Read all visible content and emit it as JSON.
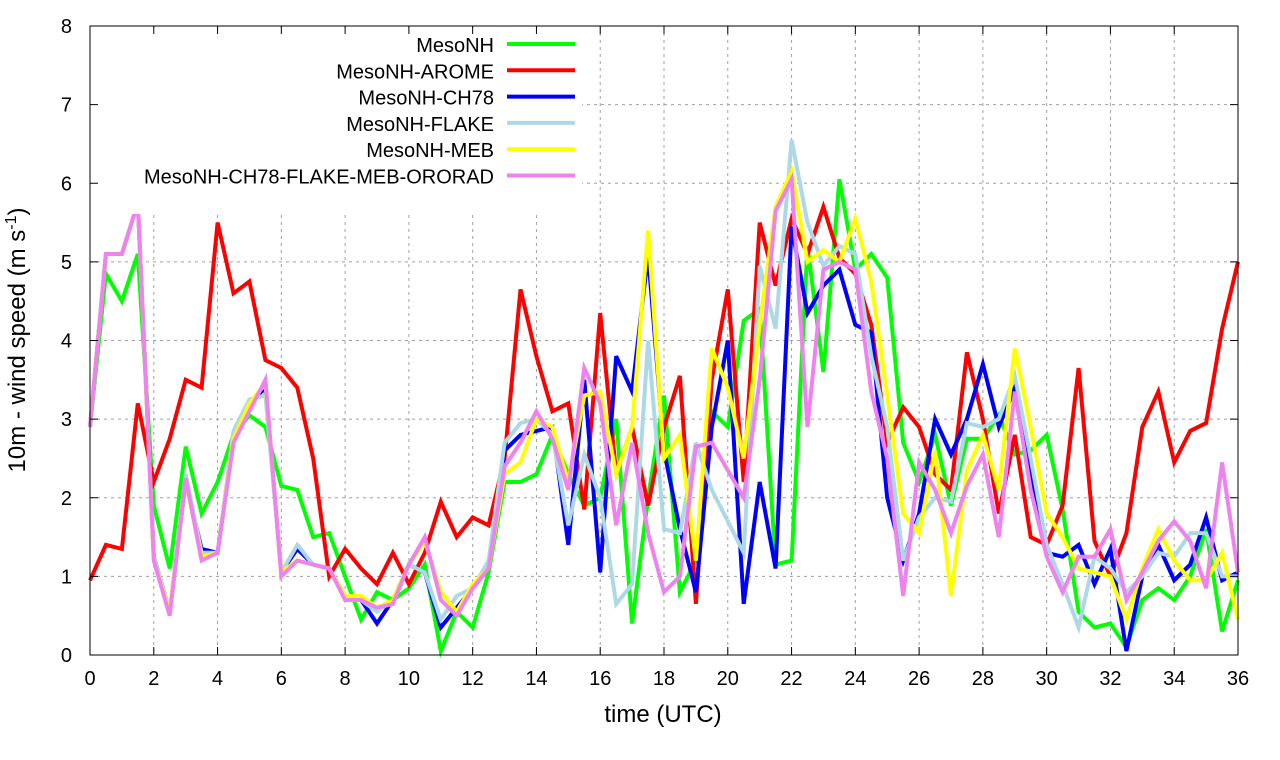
{
  "chart_data": {
    "type": "line",
    "title": "",
    "xlabel": "time (UTC)",
    "ylabel": "10m - wind speed  (m s",
    "ylabel_sup": "-1",
    "ylabel_end": ")",
    "xlim": [
      0,
      36
    ],
    "ylim": [
      0,
      8
    ],
    "xticks": [
      0,
      2,
      4,
      6,
      8,
      10,
      12,
      14,
      16,
      18,
      20,
      22,
      24,
      26,
      28,
      30,
      32,
      34,
      36
    ],
    "yticks": [
      0,
      1,
      2,
      3,
      4,
      5,
      6,
      7,
      8
    ],
    "grid": true,
    "legend_position": "top-left",
    "x_step": 0.5,
    "series": [
      {
        "name": "MesoNH",
        "color": "#00ff00",
        "values": [
          2.9,
          4.85,
          4.5,
          5.1,
          1.9,
          1.1,
          2.65,
          1.8,
          2.2,
          2.8,
          3.05,
          2.9,
          2.15,
          2.1,
          1.5,
          1.55,
          1.0,
          0.45,
          0.8,
          0.7,
          0.85,
          1.15,
          0.05,
          0.55,
          0.35,
          1.05,
          2.2,
          2.2,
          2.3,
          2.8,
          2.3,
          1.9,
          2.0,
          3.0,
          0.4,
          2.0,
          3.3,
          0.8,
          1.2,
          3.1,
          2.9,
          4.25,
          4.4,
          1.15,
          1.2,
          5.2,
          3.6,
          6.05,
          4.9,
          5.1,
          4.8,
          2.7,
          2.2,
          2.8,
          1.9,
          2.75,
          2.75,
          3.05,
          2.55,
          2.6,
          2.8,
          1.85,
          0.55,
          0.35,
          0.4,
          0.1,
          0.7,
          0.85,
          0.7,
          1.0,
          1.6,
          0.3,
          0.95
        ]
      },
      {
        "name": "MesoNH-AROME",
        "color": "#ff0000",
        "values": [
          0.95,
          1.4,
          1.35,
          3.2,
          2.2,
          2.75,
          3.5,
          3.4,
          5.5,
          4.6,
          4.75,
          3.75,
          3.65,
          3.4,
          2.5,
          1.0,
          1.35,
          1.1,
          0.9,
          1.3,
          0.9,
          1.3,
          1.95,
          1.5,
          1.75,
          1.65,
          2.5,
          4.65,
          3.8,
          3.1,
          3.2,
          1.85,
          4.35,
          2.3,
          2.9,
          1.9,
          2.9,
          3.55,
          0.65,
          3.5,
          4.65,
          2.2,
          5.5,
          4.7,
          5.55,
          5.1,
          5.7,
          5.05,
          4.85,
          4.2,
          2.7,
          3.15,
          2.9,
          2.3,
          2.1,
          3.85,
          3.0,
          1.8,
          2.8,
          1.5,
          1.4,
          1.9,
          3.65,
          1.45,
          1.0,
          1.55,
          2.9,
          3.35,
          2.45,
          2.85,
          2.95,
          4.15,
          5.0
        ]
      },
      {
        "name": "MesoNH-CH78",
        "color": "#0000ff",
        "values": [
          2.9,
          5.1,
          5.1,
          5.75,
          1.25,
          0.55,
          2.2,
          1.35,
          1.3,
          2.8,
          3.2,
          3.4,
          1.05,
          1.35,
          1.15,
          1.1,
          0.75,
          0.7,
          0.4,
          0.7,
          1.15,
          1.05,
          0.35,
          0.6,
          0.85,
          1.1,
          2.6,
          2.8,
          2.85,
          2.9,
          1.4,
          3.5,
          1.05,
          3.8,
          3.35,
          5.1,
          2.6,
          1.6,
          0.8,
          2.9,
          4.0,
          0.65,
          2.2,
          1.1,
          5.45,
          4.35,
          4.7,
          4.9,
          4.2,
          4.1,
          2.0,
          1.2,
          1.8,
          3.0,
          2.55,
          3.0,
          3.7,
          2.9,
          3.4,
          2.3,
          1.3,
          1.25,
          1.4,
          0.9,
          1.35,
          0.05,
          1.0,
          1.4,
          0.95,
          1.15,
          1.75,
          0.95,
          1.05
        ]
      },
      {
        "name": "MesoNH-FLAKE",
        "color": "#add8e6",
        "values": [
          2.9,
          5.1,
          5.1,
          5.75,
          1.25,
          0.55,
          2.3,
          1.3,
          1.3,
          2.85,
          3.25,
          3.3,
          1.05,
          1.4,
          1.15,
          1.1,
          0.75,
          0.7,
          0.55,
          0.7,
          1.15,
          1.05,
          0.45,
          0.75,
          0.85,
          1.2,
          2.7,
          2.95,
          3.0,
          2.8,
          1.65,
          2.55,
          2.0,
          0.65,
          0.9,
          4.0,
          1.6,
          1.55,
          2.7,
          2.1,
          1.7,
          1.3,
          4.95,
          4.15,
          6.55,
          5.5,
          4.95,
          5.2,
          5.1,
          3.8,
          2.9,
          1.2,
          1.75,
          2.0,
          1.95,
          2.95,
          2.9,
          3.0,
          3.55,
          2.5,
          1.4,
          0.9,
          0.35,
          1.25,
          1.1,
          0.8,
          1.0,
          1.3,
          1.25,
          1.55,
          1.55,
          1.0,
          1.0
        ]
      },
      {
        "name": "MesoNH-MEB",
        "color": "#ffff00",
        "values": [
          2.9,
          5.1,
          5.1,
          5.75,
          1.2,
          0.55,
          2.2,
          1.25,
          1.3,
          2.75,
          3.2,
          3.45,
          1.05,
          1.2,
          1.15,
          1.1,
          0.75,
          0.75,
          0.6,
          0.7,
          1.15,
          1.45,
          0.8,
          0.55,
          0.9,
          1.1,
          2.3,
          2.45,
          3.0,
          2.9,
          2.2,
          3.3,
          3.35,
          2.3,
          2.9,
          5.4,
          2.5,
          2.8,
          1.2,
          3.9,
          3.4,
          2.5,
          4.2,
          5.7,
          6.15,
          5.0,
          5.15,
          5.0,
          5.55,
          4.75,
          3.3,
          1.8,
          1.55,
          2.6,
          0.75,
          2.35,
          2.8,
          2.1,
          3.9,
          2.9,
          1.8,
          1.5,
          1.1,
          1.05,
          1.0,
          0.45,
          1.1,
          1.6,
          1.2,
          0.95,
          0.95,
          1.3,
          0.45
        ]
      },
      {
        "name": "MesoNH-CH78-FLAKE-MEB-ORORAD",
        "color": "#ee82ee",
        "values": [
          2.9,
          5.1,
          5.1,
          5.75,
          1.2,
          0.5,
          2.25,
          1.2,
          1.3,
          2.7,
          3.1,
          3.5,
          1.0,
          1.2,
          1.15,
          1.1,
          0.7,
          0.7,
          0.6,
          0.65,
          1.15,
          1.5,
          0.7,
          0.5,
          0.85,
          1.1,
          2.4,
          2.7,
          3.1,
          2.75,
          2.1,
          3.65,
          3.2,
          1.65,
          2.7,
          1.55,
          0.8,
          1.0,
          2.65,
          2.7,
          2.35,
          2.0,
          3.5,
          5.65,
          6.05,
          2.9,
          4.9,
          5.0,
          4.9,
          3.35,
          2.5,
          0.75,
          2.45,
          2.1,
          1.55,
          2.15,
          2.55,
          1.5,
          3.35,
          2.1,
          1.25,
          0.8,
          1.25,
          1.25,
          1.6,
          0.7,
          1.05,
          1.45,
          1.7,
          1.45,
          0.85,
          2.45,
          1.05
        ]
      }
    ]
  }
}
